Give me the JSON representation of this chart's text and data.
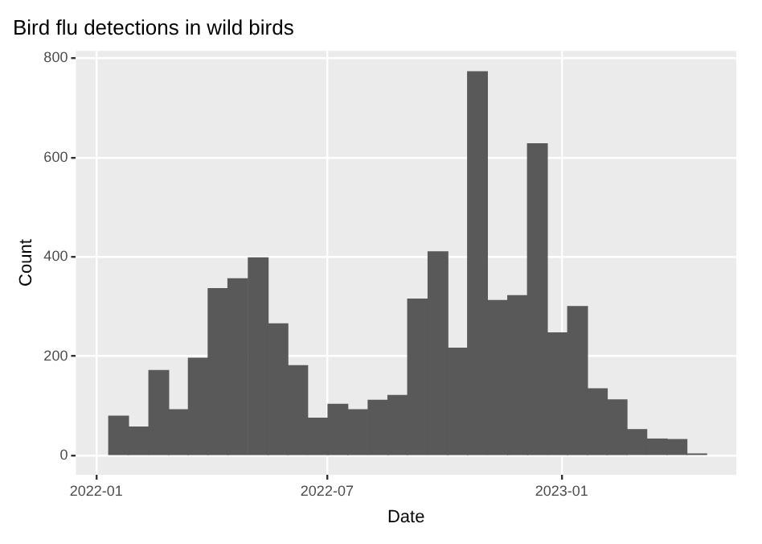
{
  "chart_data": {
    "type": "histogram",
    "title": "Bird flu detections in wild birds",
    "xlabel": "Date",
    "ylabel": "Count",
    "bins": [
      "2022-01-11",
      "2022-01-26",
      "2022-02-11",
      "2022-02-27",
      "2022-03-14",
      "2022-03-30",
      "2022-04-14",
      "2022-04-30",
      "2022-05-16",
      "2022-05-31",
      "2022-06-16",
      "2022-07-02",
      "2022-07-17",
      "2022-08-02",
      "2022-08-18",
      "2022-09-02",
      "2022-09-18",
      "2022-10-04",
      "2022-10-19",
      "2022-11-04",
      "2022-11-20",
      "2022-12-05",
      "2022-12-21",
      "2023-01-06",
      "2023-01-21",
      "2023-02-06",
      "2023-02-21",
      "2023-03-09",
      "2023-03-25",
      "2023-04-09",
      "2023-04-25"
    ],
    "values": [
      79,
      57,
      171,
      92,
      196,
      336,
      356,
      398,
      265,
      181,
      75,
      103,
      92,
      111,
      121,
      315,
      410,
      216,
      773,
      312,
      322,
      628,
      247,
      300,
      134,
      112,
      52,
      33,
      32,
      3
    ],
    "color": "#595959",
    "xlim": [
      "2021-12-16",
      "2023-05-18"
    ],
    "xticks": [
      {
        "value": "2022-01-01",
        "label": "2022-01"
      },
      {
        "value": "2022-07-01",
        "label": "2022-07"
      },
      {
        "value": "2023-01-01",
        "label": "2023-01"
      }
    ],
    "ylim": [
      -39,
      815
    ],
    "yticks": [
      0,
      200,
      400,
      600,
      800
    ],
    "grid": true
  }
}
